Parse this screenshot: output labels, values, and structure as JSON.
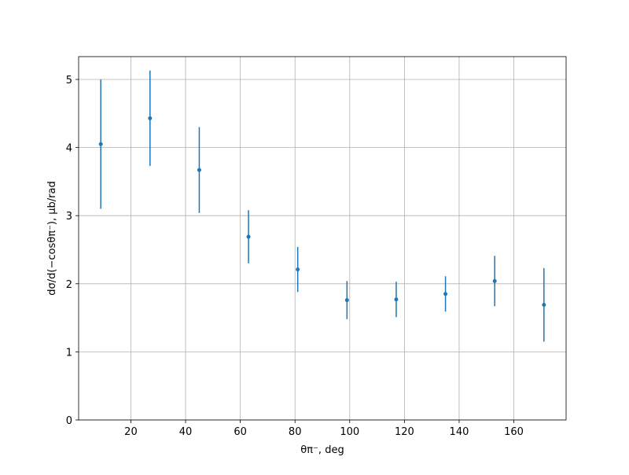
{
  "chart_data": {
    "type": "errorbar",
    "x_label": "θπ⁻, deg",
    "y_label": "dσ/d(−cosθπ⁻), μb/rad",
    "x": [
      9,
      27,
      45,
      63,
      81,
      99,
      117,
      135,
      153,
      171
    ],
    "values": [
      4.05,
      4.43,
      3.67,
      2.69,
      2.21,
      1.76,
      1.77,
      1.85,
      2.04,
      1.69
    ],
    "errors": [
      0.95,
      0.7,
      0.63,
      0.39,
      0.33,
      0.28,
      0.26,
      0.26,
      0.37,
      0.54
    ],
    "color": "#1f77b4",
    "xlim": [
      0.9,
      179.1
    ],
    "ylim": [
      0,
      5.335
    ],
    "xticks": [
      20,
      40,
      60,
      80,
      100,
      120,
      140,
      160
    ],
    "yticks": [
      0,
      1,
      2,
      3,
      4,
      5
    ],
    "grid": true
  }
}
